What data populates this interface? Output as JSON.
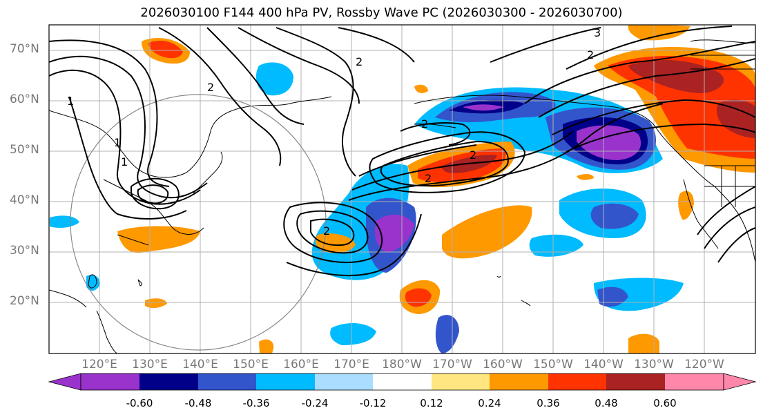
{
  "title": "2026030100 F144 400 hPa PV, Rossby Wave PC (2026030300 - 2026030700)",
  "lat_labels": [
    "70°N",
    "60°N",
    "50°N",
    "40°N",
    "30°N",
    "20°N"
  ],
  "lon_labels": [
    "120°E",
    "130°E",
    "140°E",
    "150°E",
    "160°E",
    "170°E",
    "180°W",
    "170°W",
    "160°W",
    "150°W",
    "140°W",
    "130°W",
    "120°W"
  ],
  "colorbar": {
    "levels": [
      "-0.60",
      "-0.48",
      "-0.36",
      "-0.24",
      "-0.12",
      "0.12",
      "0.24",
      "0.36",
      "0.48",
      "0.60"
    ],
    "colors": [
      "#9933cc",
      "#000088",
      "#3355cc",
      "#00bbff",
      "#aaddff",
      "#ffffff",
      "#ffe680",
      "#ff9900",
      "#ff3300",
      "#aa2222",
      "#ff88aa"
    ]
  },
  "contour_labels": [
    "1",
    "2",
    "2",
    "2",
    "2",
    "2",
    "2",
    "3",
    "2",
    "1",
    "1"
  ],
  "colors": {
    "purple": "#9933cc",
    "navy": "#000088",
    "blue": "#3355cc",
    "cyan": "#00bbff",
    "lightblue": "#aaddff",
    "yellow": "#ffe680",
    "orange": "#ff9900",
    "red": "#ff3300",
    "darkred": "#aa2222",
    "pink": "#ff88aa"
  }
}
